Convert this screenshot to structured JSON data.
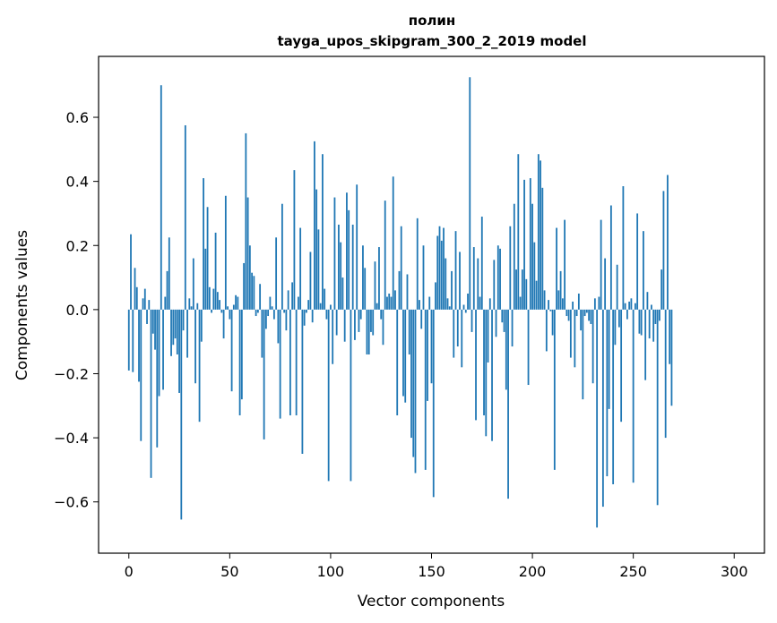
{
  "chart_data": {
    "type": "bar",
    "title": "полин",
    "subtitle": "tayga_upos_skipgram_300_2_2019 model",
    "xlabel": "Vector components",
    "ylabel": "Components values",
    "xlim": [
      -15,
      315
    ],
    "ylim": [
      -0.76,
      0.79
    ],
    "xticks": [
      {
        "value": 0,
        "label": "0"
      },
      {
        "value": 50,
        "label": "50"
      },
      {
        "value": 100,
        "label": "100"
      },
      {
        "value": 150,
        "label": "150"
      },
      {
        "value": 200,
        "label": "200"
      },
      {
        "value": 250,
        "label": "250"
      },
      {
        "value": 300,
        "label": "300"
      }
    ],
    "yticks": [
      {
        "value": -0.6,
        "label": "−0.6"
      },
      {
        "value": -0.4,
        "label": "−0.4"
      },
      {
        "value": -0.2,
        "label": "−0.2"
      },
      {
        "value": 0.0,
        "label": "0.0"
      },
      {
        "value": 0.2,
        "label": "0.2"
      },
      {
        "value": 0.4,
        "label": "0.4"
      },
      {
        "value": 0.6,
        "label": "0.6"
      }
    ],
    "grid": false,
    "bar_color": "#1f77b4",
    "series": [
      {
        "values": [
          -0.19,
          0.235,
          -0.195,
          0.13,
          0.07,
          -0.225,
          -0.41,
          0.035,
          0.065,
          -0.045,
          0.03,
          -0.525,
          -0.075,
          -0.125,
          -0.43,
          -0.27,
          0.7,
          -0.25,
          0.04,
          0.12,
          0.225,
          -0.145,
          -0.11,
          -0.09,
          -0.14,
          -0.26,
          -0.655,
          -0.065,
          0.575,
          -0.15,
          0.035,
          0.01,
          0.16,
          -0.23,
          0.02,
          -0.35,
          -0.1,
          0.41,
          0.19,
          0.32,
          0.07,
          -0.01,
          0.065,
          0.24,
          0.055,
          0.03,
          -0.01,
          -0.09,
          0.355,
          0.01,
          -0.03,
          -0.255,
          0.015,
          0.045,
          0.04,
          -0.33,
          -0.28,
          0.145,
          0.55,
          0.35,
          0.2,
          0.115,
          0.105,
          -0.02,
          -0.01,
          0.08,
          -0.15,
          -0.405,
          -0.06,
          -0.02,
          0.04,
          0.01,
          -0.03,
          0.225,
          -0.105,
          -0.34,
          0.33,
          -0.01,
          -0.065,
          0.06,
          -0.33,
          0.085,
          0.435,
          -0.33,
          0.04,
          0.255,
          -0.45,
          -0.05,
          -0.01,
          0.03,
          0.18,
          -0.04,
          0.525,
          0.375,
          0.25,
          0.02,
          0.485,
          0.065,
          -0.03,
          -0.535,
          0.015,
          -0.17,
          0.35,
          -0.08,
          0.265,
          0.21,
          0.1,
          -0.1,
          0.365,
          0.31,
          -0.535,
          0.265,
          -0.095,
          0.39,
          -0.07,
          -0.03,
          0.2,
          0.13,
          -0.14,
          -0.14,
          -0.07,
          -0.08,
          0.15,
          0.02,
          0.195,
          -0.03,
          -0.11,
          0.34,
          0.04,
          0.05,
          0.04,
          0.415,
          0.06,
          -0.33,
          0.12,
          0.26,
          -0.27,
          -0.29,
          0.11,
          -0.14,
          -0.4,
          -0.46,
          -0.51,
          0.285,
          0.03,
          -0.06,
          0.2,
          -0.5,
          -0.285,
          0.04,
          -0.23,
          -0.585,
          0.085,
          0.23,
          0.26,
          0.215,
          0.255,
          0.16,
          0.035,
          0.01,
          0.12,
          -0.15,
          0.245,
          -0.115,
          0.18,
          -0.18,
          0.015,
          -0.01,
          0.05,
          0.725,
          -0.07,
          0.195,
          -0.345,
          0.16,
          0.04,
          0.29,
          -0.33,
          -0.395,
          -0.165,
          0.035,
          -0.41,
          0.155,
          -0.085,
          0.2,
          0.19,
          -0.04,
          -0.07,
          -0.25,
          -0.59,
          0.26,
          -0.115,
          0.33,
          0.125,
          0.485,
          0.04,
          0.125,
          0.405,
          0.095,
          -0.235,
          0.41,
          0.33,
          0.21,
          0.09,
          0.485,
          0.465,
          0.38,
          0.06,
          -0.13,
          0.03,
          -0.005,
          -0.08,
          -0.5,
          0.255,
          0.06,
          0.12,
          0.035,
          0.28,
          -0.02,
          -0.035,
          -0.15,
          0.025,
          -0.18,
          -0.02,
          0.05,
          -0.065,
          -0.28,
          -0.02,
          -0.01,
          -0.035,
          -0.045,
          -0.23,
          0.035,
          -0.68,
          0.04,
          0.28,
          -0.615,
          0.16,
          -0.52,
          -0.31,
          0.325,
          -0.545,
          -0.11,
          0.14,
          -0.055,
          -0.35,
          0.385,
          0.02,
          -0.03,
          0.025,
          0.035,
          -0.54,
          0.02,
          0.3,
          -0.075,
          -0.08,
          0.245,
          -0.22,
          0.055,
          -0.09,
          0.015,
          -0.1,
          -0.045,
          -0.61,
          -0.035,
          0.125,
          0.37,
          -0.4,
          0.42,
          -0.17,
          -0.3
        ]
      }
    ]
  }
}
